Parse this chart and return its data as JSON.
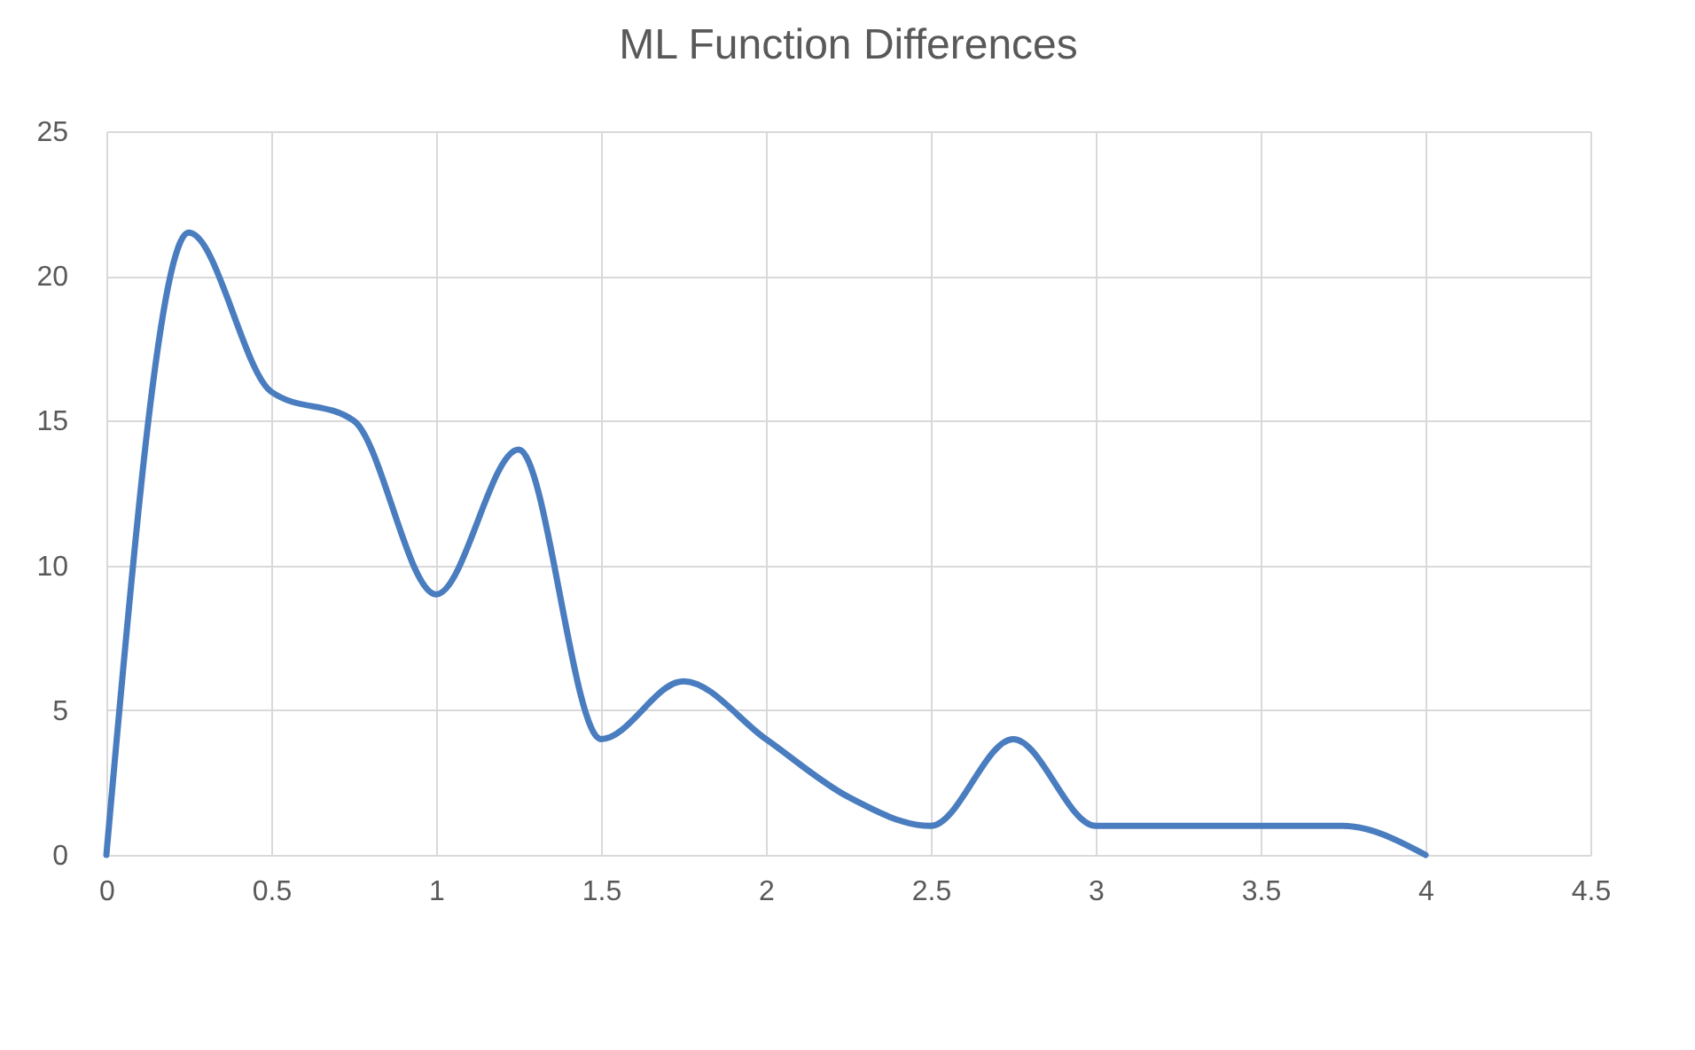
{
  "chart_data": {
    "type": "line",
    "title": "ML Function Differences",
    "x": [
      0,
      0.25,
      0.5,
      0.75,
      1,
      1.25,
      1.5,
      1.75,
      2,
      2.25,
      2.5,
      2.75,
      3,
      3.25,
      3.5,
      3.75,
      4
    ],
    "series": [
      {
        "color": "#4a7dbf",
        "values": [
          0,
          21.5,
          16,
          15,
          9,
          14,
          4,
          6,
          4,
          2,
          1,
          4,
          1,
          1,
          1,
          1,
          0
        ]
      }
    ],
    "xlim": [
      0,
      4.5
    ],
    "xticks": [
      0,
      0.5,
      1,
      1.5,
      2,
      2.5,
      3,
      3.5,
      4,
      4.5
    ],
    "ylim": [
      0,
      25
    ],
    "yticks": [
      0,
      5,
      10,
      15,
      20,
      25
    ],
    "grid": true,
    "marker": "none",
    "line_style": "solid"
  }
}
